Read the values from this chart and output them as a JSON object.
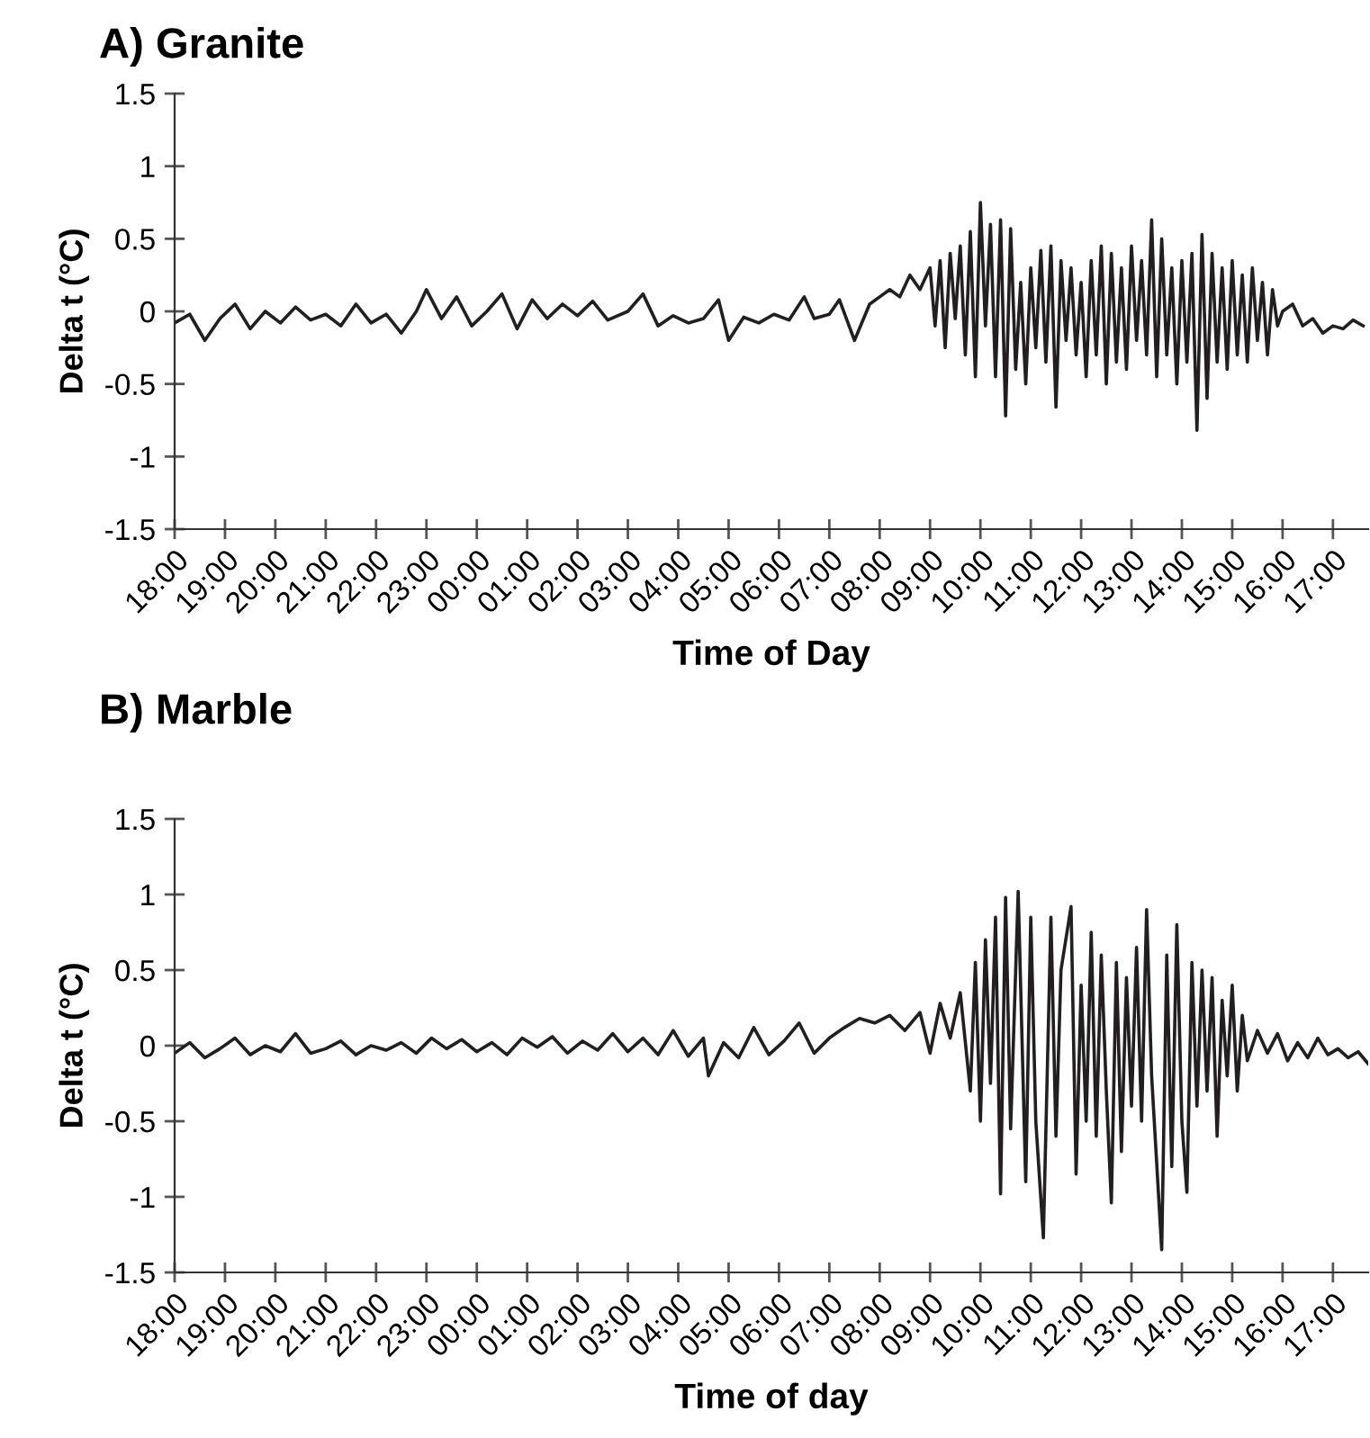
{
  "chart_data": [
    {
      "type": "line",
      "title": "A) Granite",
      "xlabel": "Time of Day",
      "ylabel": "Delta t (°C)",
      "xlim": [
        "2000-01-01T18:00",
        "2000-01-02T17:42"
      ],
      "ylim": [
        -1.5,
        1.5
      ],
      "yticks": [
        1.5,
        1,
        0.5,
        0,
        -0.5,
        -1,
        -1.5
      ],
      "xticks": [
        {
          "value": "2000-01-01T18:00",
          "label": "18:00"
        },
        {
          "value": "2000-01-01T19:00",
          "label": "19:00"
        },
        {
          "value": "2000-01-01T20:00",
          "label": "20:00"
        },
        {
          "value": "2000-01-01T21:00",
          "label": "21:00"
        },
        {
          "value": "2000-01-01T22:00",
          "label": "22:00"
        },
        {
          "value": "2000-01-01T23:00",
          "label": "23:00"
        },
        {
          "value": "2000-01-02T00:00",
          "label": "00:00"
        },
        {
          "value": "2000-01-02T01:00",
          "label": "01:00"
        },
        {
          "value": "2000-01-02T02:00",
          "label": "02:00"
        },
        {
          "value": "2000-01-02T03:00",
          "label": "03:00"
        },
        {
          "value": "2000-01-02T04:00",
          "label": "04:00"
        },
        {
          "value": "2000-01-02T05:00",
          "label": "05:00"
        },
        {
          "value": "2000-01-02T06:00",
          "label": "06:00"
        },
        {
          "value": "2000-01-02T07:00",
          "label": "07:00"
        },
        {
          "value": "2000-01-02T08:00",
          "label": "08:00"
        },
        {
          "value": "2000-01-02T09:00",
          "label": "09:00"
        },
        {
          "value": "2000-01-02T10:00",
          "label": "10:00"
        },
        {
          "value": "2000-01-02T11:00",
          "label": "11:00"
        },
        {
          "value": "2000-01-02T12:00",
          "label": "12:00"
        },
        {
          "value": "2000-01-02T13:00",
          "label": "13:00"
        },
        {
          "value": "2000-01-02T14:00",
          "label": "14:00"
        },
        {
          "value": "2000-01-02T15:00",
          "label": "15:00"
        },
        {
          "value": "2000-01-02T16:00",
          "label": "16:00"
        },
        {
          "value": "2000-01-02T17:00",
          "label": "17:00"
        }
      ],
      "grid": false,
      "marker": "none",
      "line_style": "solid",
      "series": [
        {
          "color": "#231f20",
          "x": [
            "2000-01-01T18:00",
            "2000-01-01T18:18",
            "2000-01-01T18:36",
            "2000-01-01T18:54",
            "2000-01-01T19:12",
            "2000-01-01T19:30",
            "2000-01-01T19:48",
            "2000-01-01T20:06",
            "2000-01-01T20:24",
            "2000-01-01T20:42",
            "2000-01-01T21:00",
            "2000-01-01T21:18",
            "2000-01-01T21:36",
            "2000-01-01T21:54",
            "2000-01-01T22:12",
            "2000-01-01T22:30",
            "2000-01-01T22:48",
            "2000-01-01T23:00",
            "2000-01-01T23:18",
            "2000-01-01T23:36",
            "2000-01-01T23:54",
            "2000-01-02T00:12",
            "2000-01-02T00:30",
            "2000-01-02T00:48",
            "2000-01-02T01:06",
            "2000-01-02T01:24",
            "2000-01-02T01:42",
            "2000-01-02T02:00",
            "2000-01-02T02:18",
            "2000-01-02T02:36",
            "2000-01-02T03:00",
            "2000-01-02T03:18",
            "2000-01-02T03:36",
            "2000-01-02T03:54",
            "2000-01-02T04:12",
            "2000-01-02T04:30",
            "2000-01-02T04:48",
            "2000-01-02T05:00",
            "2000-01-02T05:18",
            "2000-01-02T05:36",
            "2000-01-02T05:54",
            "2000-01-02T06:12",
            "2000-01-02T06:30",
            "2000-01-02T06:42",
            "2000-01-02T07:00",
            "2000-01-02T07:12",
            "2000-01-02T07:30",
            "2000-01-02T07:48",
            "2000-01-02T08:00",
            "2000-01-02T08:12",
            "2000-01-02T08:24",
            "2000-01-02T08:36",
            "2000-01-02T08:48",
            "2000-01-02T09:00",
            "2000-01-02T09:06",
            "2000-01-02T09:12",
            "2000-01-02T09:18",
            "2000-01-02T09:24",
            "2000-01-02T09:30",
            "2000-01-02T09:36",
            "2000-01-02T09:42",
            "2000-01-02T09:48",
            "2000-01-02T09:54",
            "2000-01-02T10:00",
            "2000-01-02T10:06",
            "2000-01-02T10:12",
            "2000-01-02T10:18",
            "2000-01-02T10:24",
            "2000-01-02T10:30",
            "2000-01-02T10:36",
            "2000-01-02T10:42",
            "2000-01-02T10:48",
            "2000-01-02T10:54",
            "2000-01-02T11:00",
            "2000-01-02T11:06",
            "2000-01-02T11:12",
            "2000-01-02T11:18",
            "2000-01-02T11:24",
            "2000-01-02T11:30",
            "2000-01-02T11:36",
            "2000-01-02T11:42",
            "2000-01-02T11:48",
            "2000-01-02T11:54",
            "2000-01-02T12:00",
            "2000-01-02T12:06",
            "2000-01-02T12:12",
            "2000-01-02T12:18",
            "2000-01-02T12:24",
            "2000-01-02T12:30",
            "2000-01-02T12:36",
            "2000-01-02T12:42",
            "2000-01-02T12:48",
            "2000-01-02T12:54",
            "2000-01-02T13:00",
            "2000-01-02T13:06",
            "2000-01-02T13:12",
            "2000-01-02T13:18",
            "2000-01-02T13:24",
            "2000-01-02T13:30",
            "2000-01-02T13:36",
            "2000-01-02T13:42",
            "2000-01-02T13:48",
            "2000-01-02T13:54",
            "2000-01-02T14:00",
            "2000-01-02T14:06",
            "2000-01-02T14:12",
            "2000-01-02T14:18",
            "2000-01-02T14:24",
            "2000-01-02T14:30",
            "2000-01-02T14:36",
            "2000-01-02T14:42",
            "2000-01-02T14:48",
            "2000-01-02T14:54",
            "2000-01-02T15:00",
            "2000-01-02T15:06",
            "2000-01-02T15:12",
            "2000-01-02T15:18",
            "2000-01-02T15:24",
            "2000-01-02T15:30",
            "2000-01-02T15:36",
            "2000-01-02T15:42",
            "2000-01-02T15:48",
            "2000-01-02T15:54",
            "2000-01-02T16:00",
            "2000-01-02T16:12",
            "2000-01-02T16:24",
            "2000-01-02T16:36",
            "2000-01-02T16:48",
            "2000-01-02T17:00",
            "2000-01-02T17:12",
            "2000-01-02T17:24",
            "2000-01-02T17:36"
          ],
          "values": [
            -0.08,
            -0.02,
            -0.2,
            -0.05,
            0.05,
            -0.12,
            0.0,
            -0.08,
            0.03,
            -0.06,
            -0.02,
            -0.1,
            0.05,
            -0.08,
            -0.02,
            -0.15,
            0.0,
            0.15,
            -0.05,
            0.1,
            -0.1,
            0.0,
            0.12,
            -0.12,
            0.08,
            -0.05,
            0.05,
            -0.03,
            0.07,
            -0.06,
            0.0,
            0.12,
            -0.1,
            -0.03,
            -0.08,
            -0.05,
            0.08,
            -0.2,
            -0.04,
            -0.08,
            -0.02,
            -0.06,
            0.1,
            -0.05,
            -0.02,
            0.08,
            -0.2,
            0.05,
            0.1,
            0.15,
            0.1,
            0.25,
            0.15,
            0.3,
            -0.1,
            0.35,
            -0.25,
            0.4,
            -0.05,
            0.45,
            -0.3,
            0.55,
            -0.45,
            0.75,
            -0.1,
            0.6,
            -0.45,
            0.63,
            -0.72,
            0.57,
            -0.4,
            0.2,
            -0.5,
            0.3,
            -0.25,
            0.42,
            -0.35,
            0.45,
            -0.66,
            0.35,
            -0.2,
            0.3,
            -0.3,
            0.2,
            -0.45,
            0.35,
            -0.3,
            0.45,
            -0.5,
            0.4,
            -0.35,
            0.3,
            -0.4,
            0.45,
            -0.2,
            0.35,
            -0.3,
            0.63,
            -0.45,
            0.5,
            -0.3,
            0.3,
            -0.5,
            0.35,
            -0.35,
            0.4,
            -0.82,
            0.53,
            -0.6,
            0.4,
            -0.35,
            0.3,
            -0.4,
            0.35,
            -0.3,
            0.25,
            -0.35,
            0.3,
            -0.2,
            0.2,
            -0.3,
            0.15,
            -0.1,
            0.0,
            0.05,
            -0.1,
            -0.05,
            -0.15,
            -0.1,
            -0.12,
            -0.06,
            -0.1
          ]
        }
      ]
    },
    {
      "type": "line",
      "title": "B) Marble",
      "xlabel": "Time of day",
      "ylabel": "Delta t (°C)",
      "xlim": [
        "2000-01-01T18:00",
        "2000-01-02T17:42"
      ],
      "ylim": [
        -1.5,
        1.5
      ],
      "yticks": [
        1.5,
        1,
        0.5,
        0,
        -0.5,
        -1,
        -1.5
      ],
      "xticks": [
        {
          "value": "2000-01-01T18:00",
          "label": "18:00"
        },
        {
          "value": "2000-01-01T19:00",
          "label": "19:00"
        },
        {
          "value": "2000-01-01T20:00",
          "label": "20:00"
        },
        {
          "value": "2000-01-01T21:00",
          "label": "21:00"
        },
        {
          "value": "2000-01-01T22:00",
          "label": "22:00"
        },
        {
          "value": "2000-01-01T23:00",
          "label": "23:00"
        },
        {
          "value": "2000-01-02T00:00",
          "label": "00:00"
        },
        {
          "value": "2000-01-02T01:00",
          "label": "01:00"
        },
        {
          "value": "2000-01-02T02:00",
          "label": "02:00"
        },
        {
          "value": "2000-01-02T03:00",
          "label": "03:00"
        },
        {
          "value": "2000-01-02T04:00",
          "label": "04:00"
        },
        {
          "value": "2000-01-02T05:00",
          "label": "05:00"
        },
        {
          "value": "2000-01-02T06:00",
          "label": "06:00"
        },
        {
          "value": "2000-01-02T07:00",
          "label": "07:00"
        },
        {
          "value": "2000-01-02T08:00",
          "label": "08:00"
        },
        {
          "value": "2000-01-02T09:00",
          "label": "09:00"
        },
        {
          "value": "2000-01-02T10:00",
          "label": "10:00"
        },
        {
          "value": "2000-01-02T11:00",
          "label": "11:00"
        },
        {
          "value": "2000-01-02T12:00",
          "label": "12:00"
        },
        {
          "value": "2000-01-02T13:00",
          "label": "13:00"
        },
        {
          "value": "2000-01-02T14:00",
          "label": "14:00"
        },
        {
          "value": "2000-01-02T15:00",
          "label": "15:00"
        },
        {
          "value": "2000-01-02T16:00",
          "label": "16:00"
        },
        {
          "value": "2000-01-02T17:00",
          "label": "17:00"
        }
      ],
      "grid": false,
      "marker": "none",
      "line_style": "solid",
      "series": [
        {
          "color": "#231f20",
          "x": [
            "2000-01-01T18:00",
            "2000-01-01T18:18",
            "2000-01-01T18:36",
            "2000-01-01T18:54",
            "2000-01-01T19:12",
            "2000-01-01T19:30",
            "2000-01-01T19:48",
            "2000-01-01T20:06",
            "2000-01-01T20:24",
            "2000-01-01T20:42",
            "2000-01-01T21:00",
            "2000-01-01T21:18",
            "2000-01-01T21:36",
            "2000-01-01T21:54",
            "2000-01-01T22:12",
            "2000-01-01T22:30",
            "2000-01-01T22:48",
            "2000-01-01T23:06",
            "2000-01-01T23:24",
            "2000-01-01T23:42",
            "2000-01-02T00:00",
            "2000-01-02T00:18",
            "2000-01-02T00:36",
            "2000-01-02T00:54",
            "2000-01-02T01:12",
            "2000-01-02T01:30",
            "2000-01-02T01:48",
            "2000-01-02T02:06",
            "2000-01-02T02:24",
            "2000-01-02T02:42",
            "2000-01-02T03:00",
            "2000-01-02T03:18",
            "2000-01-02T03:36",
            "2000-01-02T03:54",
            "2000-01-02T04:12",
            "2000-01-02T04:30",
            "2000-01-02T04:36",
            "2000-01-02T04:54",
            "2000-01-02T05:12",
            "2000-01-02T05:30",
            "2000-01-02T05:48",
            "2000-01-02T06:06",
            "2000-01-02T06:24",
            "2000-01-02T06:42",
            "2000-01-02T07:00",
            "2000-01-02T07:18",
            "2000-01-02T07:36",
            "2000-01-02T07:54",
            "2000-01-02T08:12",
            "2000-01-02T08:30",
            "2000-01-02T08:48",
            "2000-01-02T09:00",
            "2000-01-02T09:12",
            "2000-01-02T09:24",
            "2000-01-02T09:36",
            "2000-01-02T09:48",
            "2000-01-02T09:54",
            "2000-01-02T10:00",
            "2000-01-02T10:06",
            "2000-01-02T10:12",
            "2000-01-02T10:18",
            "2000-01-02T10:24",
            "2000-01-02T10:30",
            "2000-01-02T10:36",
            "2000-01-02T10:45",
            "2000-01-02T10:54",
            "2000-01-02T11:00",
            "2000-01-02T11:06",
            "2000-01-02T11:15",
            "2000-01-02T11:24",
            "2000-01-02T11:30",
            "2000-01-02T11:36",
            "2000-01-02T11:48",
            "2000-01-02T11:54",
            "2000-01-02T12:00",
            "2000-01-02T12:06",
            "2000-01-02T12:12",
            "2000-01-02T12:18",
            "2000-01-02T12:24",
            "2000-01-02T12:30",
            "2000-01-02T12:36",
            "2000-01-02T12:42",
            "2000-01-02T12:48",
            "2000-01-02T12:54",
            "2000-01-02T13:00",
            "2000-01-02T13:06",
            "2000-01-02T13:12",
            "2000-01-02T13:18",
            "2000-01-02T13:24",
            "2000-01-02T13:36",
            "2000-01-02T13:42",
            "2000-01-02T13:48",
            "2000-01-02T13:54",
            "2000-01-02T14:00",
            "2000-01-02T14:06",
            "2000-01-02T14:12",
            "2000-01-02T14:18",
            "2000-01-02T14:24",
            "2000-01-02T14:30",
            "2000-01-02T14:36",
            "2000-01-02T14:42",
            "2000-01-02T14:48",
            "2000-01-02T14:54",
            "2000-01-02T15:00",
            "2000-01-02T15:06",
            "2000-01-02T15:12",
            "2000-01-02T15:18",
            "2000-01-02T15:30",
            "2000-01-02T15:42",
            "2000-01-02T15:54",
            "2000-01-02T16:06",
            "2000-01-02T16:18",
            "2000-01-02T16:30",
            "2000-01-02T16:42",
            "2000-01-02T16:54",
            "2000-01-02T17:06",
            "2000-01-02T17:18",
            "2000-01-02T17:30",
            "2000-01-02T17:42"
          ],
          "values": [
            -0.05,
            0.02,
            -0.08,
            -0.02,
            0.05,
            -0.06,
            0.0,
            -0.04,
            0.08,
            -0.05,
            -0.02,
            0.03,
            -0.06,
            0.0,
            -0.03,
            0.02,
            -0.05,
            0.05,
            -0.02,
            0.04,
            -0.04,
            0.02,
            -0.06,
            0.05,
            -0.01,
            0.06,
            -0.05,
            0.03,
            -0.03,
            0.08,
            -0.04,
            0.05,
            -0.06,
            0.1,
            -0.07,
            0.05,
            -0.2,
            0.02,
            -0.08,
            0.12,
            -0.06,
            0.03,
            0.15,
            -0.05,
            0.05,
            0.12,
            0.18,
            0.15,
            0.2,
            0.1,
            0.22,
            -0.05,
            0.28,
            0.05,
            0.35,
            -0.3,
            0.55,
            -0.5,
            0.7,
            -0.25,
            0.85,
            -0.98,
            0.98,
            -0.55,
            1.02,
            -0.9,
            0.85,
            -0.5,
            -1.27,
            0.85,
            -0.6,
            0.5,
            0.92,
            -0.85,
            0.4,
            -0.5,
            0.75,
            -0.6,
            0.6,
            -0.3,
            -1.04,
            0.55,
            -0.7,
            0.45,
            -0.4,
            0.65,
            -0.5,
            0.9,
            -0.2,
            -1.35,
            0.6,
            -0.8,
            0.8,
            -0.5,
            -0.97,
            0.55,
            -0.4,
            0.5,
            -0.3,
            0.45,
            -0.6,
            0.3,
            -0.2,
            0.4,
            -0.3,
            0.2,
            -0.1,
            0.1,
            -0.05,
            0.08,
            -0.1,
            0.02,
            -0.08,
            0.05,
            -0.06,
            -0.02,
            -0.08,
            -0.04,
            -0.12
          ]
        }
      ]
    }
  ]
}
